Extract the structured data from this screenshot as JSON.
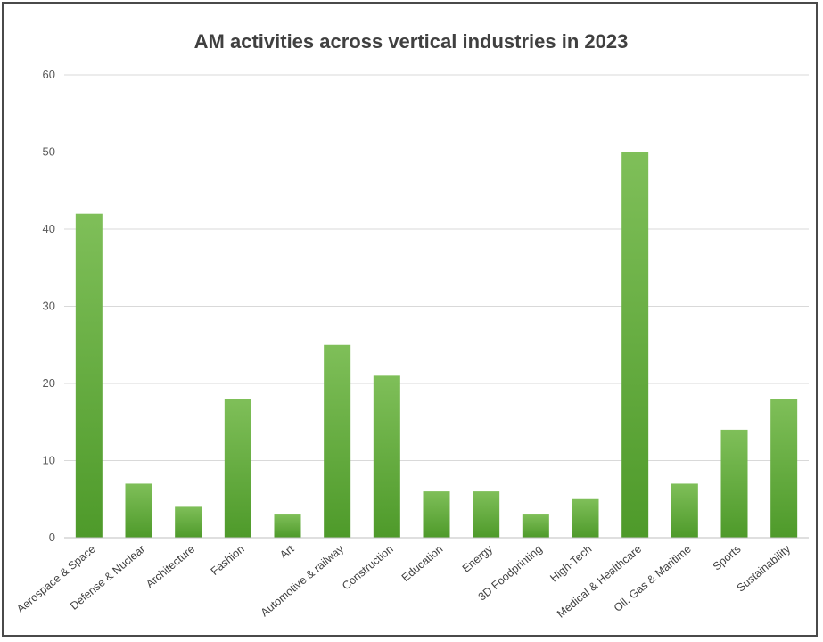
{
  "chart_data": {
    "type": "bar",
    "title": "AM activities across vertical industries in 2023",
    "xlabel": "",
    "ylabel": "",
    "ylim": [
      0,
      60
    ],
    "yticks": [
      0,
      10,
      20,
      30,
      40,
      50,
      60
    ],
    "grid": true,
    "legend": "none",
    "bar_color": "#6db33f",
    "categories": [
      "Aerospace & Space",
      "Defense & Nuclear",
      "Architecture",
      "Fashion",
      "Art",
      "Automotive & railway",
      "Construction",
      "Education",
      "Energy",
      "3D Foodprinting",
      "High-Tech",
      "Medical & Healthcare",
      "Oil, Gas & Maritime",
      "Sports",
      "Sustainability"
    ],
    "values": [
      42,
      7,
      4,
      18,
      3,
      25,
      21,
      6,
      6,
      3,
      5,
      50,
      7,
      14,
      18
    ]
  }
}
